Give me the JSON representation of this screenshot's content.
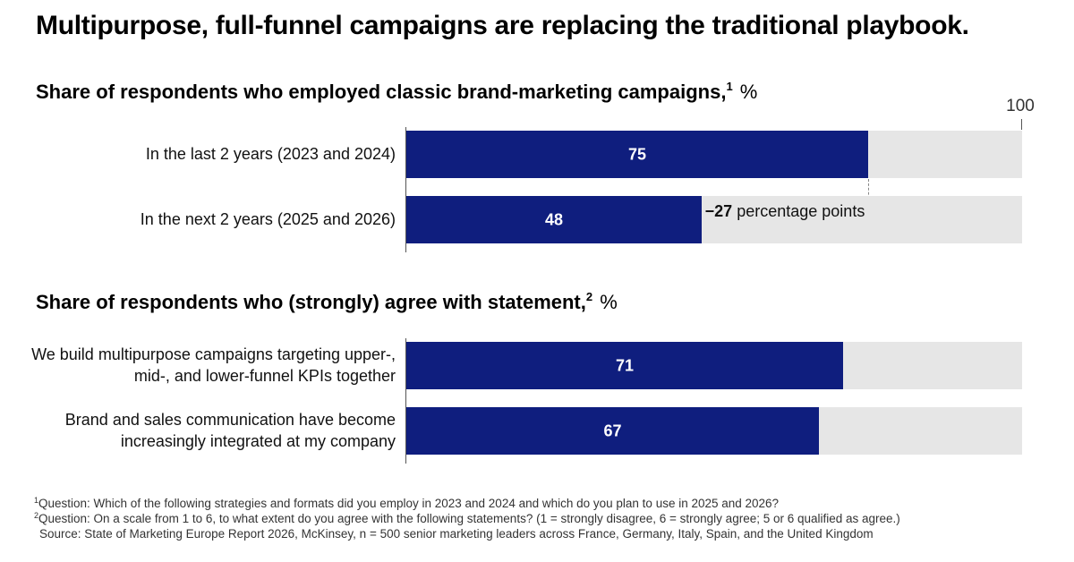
{
  "title": "Multipurpose, full-funnel campaigns are replacing the traditional playbook.",
  "chart_data": [
    {
      "type": "bar",
      "orientation": "horizontal",
      "title": "Share of respondents who employed classic brand-marketing campaigns,",
      "title_footnote": "1",
      "unit": "%",
      "xlim": [
        0,
        100
      ],
      "axis_max_label": "100",
      "categories": [
        "In the last 2 years (2023 and 2024)",
        "In the next 2 years (2025 and 2026)"
      ],
      "values": [
        75,
        48
      ],
      "annotation": {
        "value": "−27",
        "text": "percentage points"
      }
    },
    {
      "type": "bar",
      "orientation": "horizontal",
      "title": "Share of respondents who (strongly) agree with statement,",
      "title_footnote": "2",
      "unit": "%",
      "xlim": [
        0,
        100
      ],
      "categories": [
        "We build multipurpose campaigns targeting upper-, mid-, and lower-funnel KPIs together",
        "Brand and sales communication have become increasingly integrated at my company"
      ],
      "values": [
        71,
        67
      ]
    }
  ],
  "footnotes": {
    "note1_marker": "1",
    "note1": "Question: Which of the following strategies and formats did you employ in 2023 and 2024 and which do you plan to use in 2025 and 2026?",
    "note2_marker": "2",
    "note2": "Question: On a scale from 1 to 6, to what extent do you agree with the following statements? (1 = strongly disagree, 6 = strongly agree; 5 or 6 qualified as agree.)",
    "source": "Source: State of Marketing Europe Report 2026, McKinsey, n = 500 senior marketing leaders across France, Germany, Italy, Spain, and the United Kingdom"
  },
  "colors": {
    "bar": "#0f1e7e",
    "track": "#e6e6e6"
  }
}
